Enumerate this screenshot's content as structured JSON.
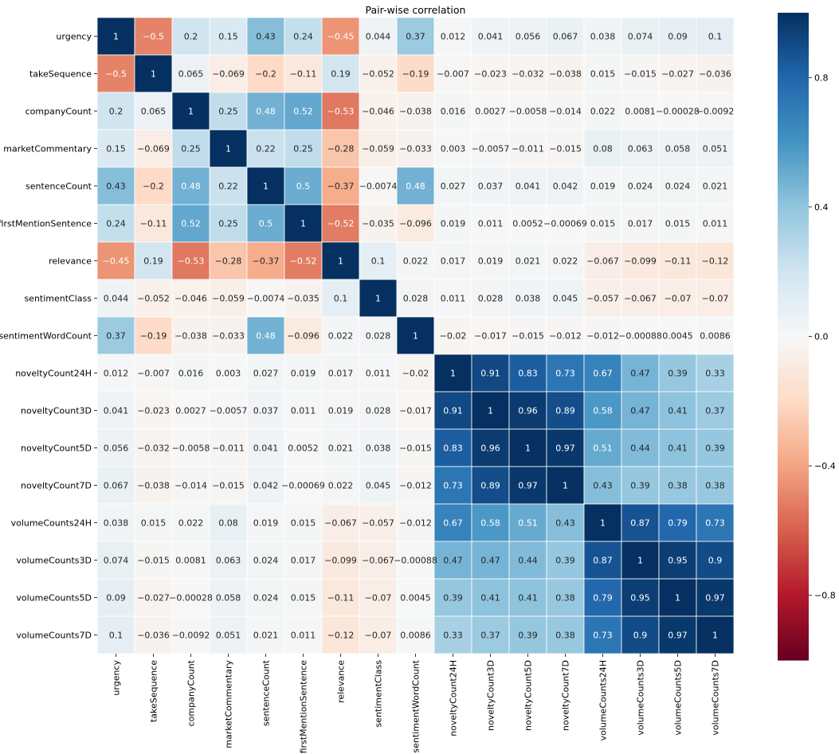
{
  "chart_data": {
    "type": "heatmap",
    "title": "Pair-wise correlation",
    "labels": [
      "urgency",
      "takeSequence",
      "companyCount",
      "marketCommentary",
      "sentenceCount",
      "firstMentionSentence",
      "relevance",
      "sentimentClass",
      "sentimentWordCount",
      "noveltyCount24H",
      "noveltyCount3D",
      "noveltyCount5D",
      "noveltyCount7D",
      "volumeCounts24H",
      "volumeCounts3D",
      "volumeCounts5D",
      "volumeCounts7D"
    ],
    "matrix": [
      [
        1,
        -0.5,
        0.2,
        0.15,
        0.43,
        0.24,
        -0.45,
        0.044,
        0.37,
        0.012,
        0.041,
        0.056,
        0.067,
        0.038,
        0.074,
        0.09,
        0.1
      ],
      [
        -0.5,
        1,
        0.065,
        -0.069,
        -0.2,
        -0.11,
        0.19,
        -0.052,
        -0.19,
        -0.007,
        -0.023,
        -0.032,
        -0.038,
        0.015,
        -0.015,
        -0.027,
        -0.036
      ],
      [
        0.2,
        0.065,
        1,
        0.25,
        0.48,
        0.52,
        -0.53,
        -0.046,
        -0.038,
        0.016,
        0.0027,
        -0.0058,
        -0.014,
        0.022,
        0.0081,
        -0.00028,
        -0.0092
      ],
      [
        0.15,
        -0.069,
        0.25,
        1,
        0.22,
        0.25,
        -0.28,
        -0.059,
        -0.033,
        0.003,
        -0.0057,
        -0.011,
        -0.015,
        0.08,
        0.063,
        0.058,
        0.051
      ],
      [
        0.43,
        -0.2,
        0.48,
        0.22,
        1,
        0.5,
        -0.37,
        -0.0074,
        0.48,
        0.027,
        0.037,
        0.041,
        0.042,
        0.019,
        0.024,
        0.024,
        0.021
      ],
      [
        0.24,
        -0.11,
        0.52,
        0.25,
        0.5,
        1,
        -0.52,
        -0.035,
        -0.096,
        0.019,
        0.011,
        0.0052,
        -0.00069,
        0.015,
        0.017,
        0.015,
        0.011
      ],
      [
        -0.45,
        0.19,
        -0.53,
        -0.28,
        -0.37,
        -0.52,
        1,
        0.1,
        0.022,
        0.017,
        0.019,
        0.021,
        0.022,
        -0.067,
        -0.099,
        -0.11,
        -0.12
      ],
      [
        0.044,
        -0.052,
        -0.046,
        -0.059,
        -0.0074,
        -0.035,
        0.1,
        1,
        0.028,
        0.011,
        0.028,
        0.038,
        0.045,
        -0.057,
        -0.067,
        -0.07,
        -0.07
      ],
      [
        0.37,
        -0.19,
        -0.038,
        -0.033,
        0.48,
        -0.096,
        0.022,
        0.028,
        1,
        -0.02,
        -0.017,
        -0.015,
        -0.012,
        -0.012,
        -0.00088,
        0.0045,
        0.0086
      ],
      [
        0.012,
        -0.007,
        0.016,
        0.003,
        0.027,
        0.019,
        0.017,
        0.011,
        -0.02,
        1,
        0.91,
        0.83,
        0.73,
        0.67,
        0.47,
        0.39,
        0.33
      ],
      [
        0.041,
        -0.023,
        0.0027,
        -0.0057,
        0.037,
        0.011,
        0.019,
        0.028,
        -0.017,
        0.91,
        1,
        0.96,
        0.89,
        0.58,
        0.47,
        0.41,
        0.37
      ],
      [
        0.056,
        -0.032,
        -0.0058,
        -0.011,
        0.041,
        0.0052,
        0.021,
        0.038,
        -0.015,
        0.83,
        0.96,
        1,
        0.97,
        0.51,
        0.44,
        0.41,
        0.39
      ],
      [
        0.067,
        -0.038,
        -0.014,
        -0.015,
        0.042,
        -0.00069,
        0.022,
        0.045,
        -0.012,
        0.73,
        0.89,
        0.97,
        1,
        0.43,
        0.39,
        0.38,
        0.38
      ],
      [
        0.038,
        0.015,
        0.022,
        0.08,
        0.019,
        0.015,
        -0.067,
        -0.057,
        -0.012,
        0.67,
        0.58,
        0.51,
        0.43,
        1,
        0.87,
        0.79,
        0.73
      ],
      [
        0.074,
        -0.015,
        0.0081,
        0.063,
        0.024,
        0.017,
        -0.099,
        -0.067,
        -0.00088,
        0.47,
        0.47,
        0.44,
        0.39,
        0.87,
        1,
        0.95,
        0.9
      ],
      [
        0.09,
        -0.027,
        -0.00028,
        0.058,
        0.024,
        0.015,
        -0.11,
        -0.07,
        0.0045,
        0.39,
        0.41,
        0.41,
        0.38,
        0.79,
        0.95,
        1,
        0.97
      ],
      [
        0.1,
        -0.036,
        -0.0092,
        0.051,
        0.021,
        0.011,
        -0.12,
        -0.07,
        0.0086,
        0.33,
        0.37,
        0.39,
        0.38,
        0.73,
        0.9,
        0.97,
        1
      ]
    ],
    "colormap": "RdBu",
    "vmin": -1,
    "vmax": 1,
    "colorbar_ticks": [
      0.8,
      0.4,
      0.0,
      -0.4,
      -0.8
    ],
    "colorbar_tick_labels": [
      "0.8",
      "0.4",
      "0.0",
      "−0.4",
      "−0.8"
    ],
    "annotations_shown": true,
    "grid_color": "#ffffff"
  }
}
